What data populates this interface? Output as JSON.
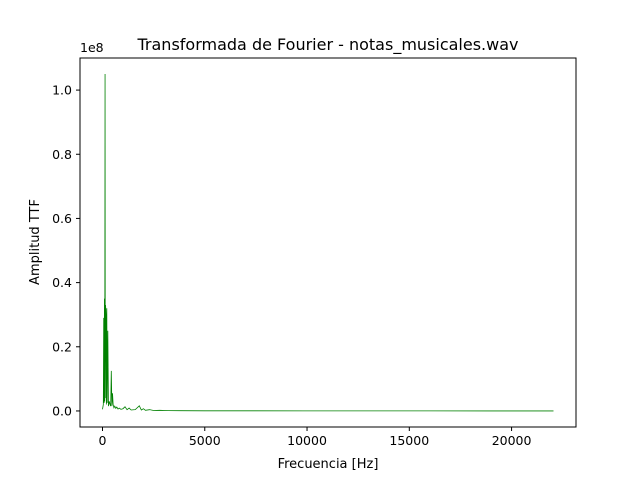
{
  "chart_data": {
    "type": "line",
    "title": "Transformada de Fourier - notas_musicales.wav",
    "xlabel": "Frecuencia [Hz]",
    "ylabel": "Amplitud TTF",
    "y_offset_label": "1e8",
    "xlim": [
      -1100,
      23150
    ],
    "ylim": [
      -5000000,
      110000000
    ],
    "x_ticks": [
      0,
      5000,
      10000,
      15000,
      20000
    ],
    "x_tick_labels": [
      "0",
      "5000",
      "10000",
      "15000",
      "20000"
    ],
    "y_ticks": [
      0,
      20000000,
      40000000,
      60000000,
      80000000,
      100000000
    ],
    "y_tick_labels": [
      "0.0",
      "0.2",
      "0.4",
      "0.6",
      "0.8",
      "1.0"
    ],
    "grid": false,
    "legend": "none",
    "line_color": "#008000",
    "series": [
      {
        "x": [
          0,
          40,
          60,
          80,
          95,
          110,
          125,
          135,
          150,
          170,
          190,
          210,
          230,
          260,
          290,
          330,
          370,
          400,
          430,
          460,
          490,
          520,
          560,
          600,
          650,
          700,
          760,
          820,
          900,
          1000,
          1100,
          1200,
          1300,
          1400,
          1600,
          1800,
          1900,
          2000,
          2100,
          2300,
          2500,
          2800,
          3200,
          3800,
          5000,
          7000,
          10000,
          13000,
          16000,
          19000,
          22050
        ],
        "y": [
          500000,
          2000000,
          29000000,
          2500000,
          35000000,
          3000000,
          105000000,
          4000000,
          33000000,
          30000000,
          2000000,
          32000000,
          2500000,
          25000000,
          1500000,
          3000000,
          2000000,
          1500000,
          12500000,
          1500000,
          5500000,
          2000000,
          1000000,
          1500000,
          800000,
          1200000,
          600000,
          900000,
          500000,
          700000,
          1300000,
          400000,
          900000,
          300000,
          400000,
          1600000,
          300000,
          700000,
          200000,
          400000,
          150000,
          200000,
          100000,
          80000,
          50000,
          40000,
          30000,
          20000,
          15000,
          10000,
          0
        ]
      }
    ]
  }
}
